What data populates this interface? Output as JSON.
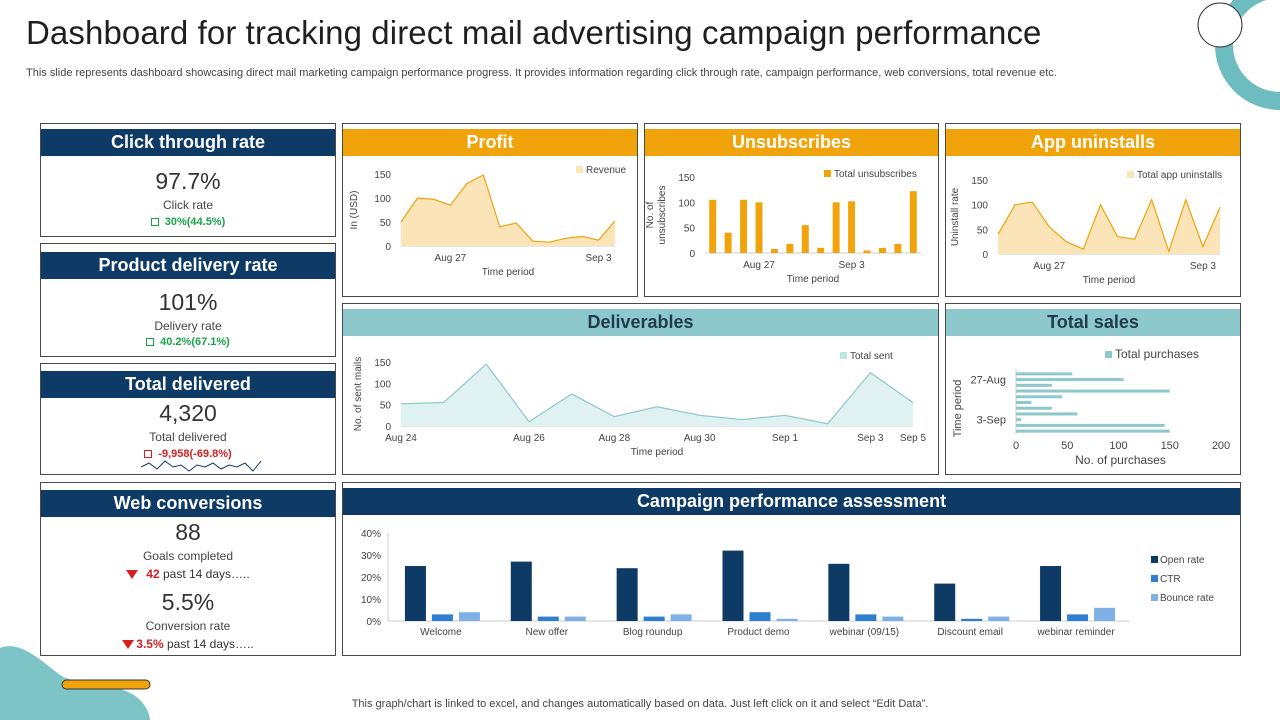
{
  "header": {
    "title": "Dashboard for tracking direct mail advertising campaign performance",
    "subtitle": "This slide represents dashboard showcasing direct mail marketing campaign performance progress. It provides information regarding click through rate, campaign performance, web conversions, total revenue etc."
  },
  "footer": "This graph/chart is linked to excel,  and changes automatically based on data. Just left click on it and select “Edit Data”.",
  "colors": {
    "navy": "#0e3a66",
    "gold": "#f0a30a",
    "teal": "#8cc8cc",
    "green": "#1aa34a",
    "red": "#d61f1f"
  },
  "ctr": {
    "title": "Click through rate",
    "value": "97.7%",
    "label": "Click rate",
    "delta": "30%(44.5%)",
    "icon": "square-icon"
  },
  "delivery": {
    "title": "Product delivery rate",
    "value": "101%",
    "label": "Delivery rate",
    "delta": "40.2%(67.1%)",
    "icon": "square-icon"
  },
  "delivered": {
    "title": "Total delivered",
    "value": "4,320",
    "label": "Total delivered",
    "delta": "-9,958(-69.8%)",
    "icon": "square-icon",
    "sparkline": [
      6,
      8,
      5,
      9,
      6,
      7,
      4,
      7,
      6,
      8,
      5,
      7,
      6,
      8,
      4,
      9
    ]
  },
  "web": {
    "title": "Web conversions",
    "value1": "88",
    "label1": "Goals completed",
    "delta1": "42",
    "delta1_text": "past 14 days…..",
    "value2": "5.5%",
    "label2": "Conversion rate",
    "delta2": "3.5%",
    "delta2_text": "past 14 days…..",
    "icon": "down-triangle-icon"
  },
  "panels": {
    "profit": "Profit",
    "unsubscribes": "Unsubscribes",
    "uninstalls": "App uninstalls",
    "deliverables": "Deliverables",
    "total_sales": "Total sales",
    "campaign": "Campaign performance assessment"
  },
  "chart_data": [
    {
      "id": "profit",
      "type": "area",
      "title": "Profit",
      "legend": "Revenue",
      "ylabel": "In (USD)",
      "xlabel": "Time period",
      "ylim": [
        0,
        150
      ],
      "yticks": [
        0,
        50,
        100,
        150
      ],
      "values": [
        50,
        100,
        97,
        85,
        130,
        148,
        40,
        48,
        10,
        8,
        16,
        20,
        12,
        52
      ],
      "xticks": [
        {
          "i": 3,
          "label": "Aug 27"
        },
        {
          "i": 12,
          "label": "Sep 3"
        }
      ]
    },
    {
      "id": "unsubscribes",
      "type": "bar",
      "title": "Unsubscribes",
      "legend": "Total unsubscribes",
      "ylabel": "No. of unsubscribes",
      "xlabel": "Time period",
      "ylim": [
        0,
        150
      ],
      "yticks": [
        0,
        50,
        100,
        150
      ],
      "values": [
        105,
        40,
        105,
        100,
        8,
        18,
        55,
        10,
        100,
        102,
        5,
        10,
        18,
        122
      ],
      "xticks": [
        {
          "i": 3,
          "label": "Aug 27"
        },
        {
          "i": 9,
          "label": "Sep 3"
        }
      ]
    },
    {
      "id": "uninstalls",
      "type": "area",
      "title": "App uninstalls",
      "legend": "Total app uninstalls",
      "ylabel": "Uninstall rate",
      "xlabel": "Time period",
      "ylim": [
        0,
        150
      ],
      "yticks": [
        0,
        50,
        100,
        150
      ],
      "values": [
        40,
        100,
        105,
        55,
        25,
        10,
        100,
        35,
        30,
        110,
        5,
        110,
        15,
        95
      ],
      "xticks": [
        {
          "i": 3,
          "label": "Aug 27"
        },
        {
          "i": 12,
          "label": "Sep 3"
        }
      ]
    },
    {
      "id": "deliverables",
      "type": "area",
      "title": "Deliverables",
      "legend": "Total sent",
      "ylabel": "No. of sent mails",
      "xlabel": "Time period",
      "ylim": [
        0,
        150
      ],
      "yticks": [
        0,
        50,
        100,
        150
      ],
      "values": [
        52,
        55,
        145,
        10,
        75,
        22,
        45,
        25,
        15,
        25,
        5,
        125,
        55
      ],
      "xticks": [
        {
          "i": 0,
          "label": "Aug 24"
        },
        {
          "i": 3,
          "label": "Aug 26"
        },
        {
          "i": 5,
          "label": "Aug 28"
        },
        {
          "i": 7,
          "label": "Aug 30"
        },
        {
          "i": 9,
          "label": "Sep 1"
        },
        {
          "i": 11,
          "label": "Sep 3"
        },
        {
          "i": 12,
          "label": "Sep 5"
        }
      ]
    },
    {
      "id": "total_sales",
      "type": "bar",
      "orientation": "horizontal",
      "title": "Total sales",
      "legend": "Total purchases",
      "ylabel": "Time period",
      "xlabel": "No. of purchases",
      "xlim": [
        0,
        200
      ],
      "xticks": [
        0,
        50,
        100,
        150,
        200
      ],
      "values": [
        55,
        105,
        35,
        150,
        45,
        15,
        35,
        60,
        5,
        145,
        150
      ],
      "yticks": [
        {
          "i": 1,
          "label": "27-Aug"
        },
        {
          "i": 8,
          "label": "3-Sep"
        }
      ]
    },
    {
      "id": "campaign",
      "type": "bar",
      "title": "Campaign performance assessment",
      "categories": [
        "Welcome",
        "New offer",
        "Blog roundup",
        "Product demo",
        "webinar (09/15)",
        "Discount email",
        "webinar reminder"
      ],
      "ylim": [
        0,
        40
      ],
      "yticks": [
        "0%",
        "10%",
        "20%",
        "30%",
        "40%"
      ],
      "series": [
        {
          "name": "Open rate",
          "color": "#0e3a66",
          "values": [
            25,
            27,
            24,
            32,
            26,
            17,
            25
          ]
        },
        {
          "name": "CTR",
          "color": "#2f7fd1",
          "values": [
            3,
            2,
            2,
            4,
            3,
            1,
            3
          ]
        },
        {
          "name": "Bounce rate",
          "color": "#7fb0e6",
          "values": [
            4,
            2,
            3,
            1,
            2,
            2,
            6
          ]
        }
      ]
    }
  ]
}
